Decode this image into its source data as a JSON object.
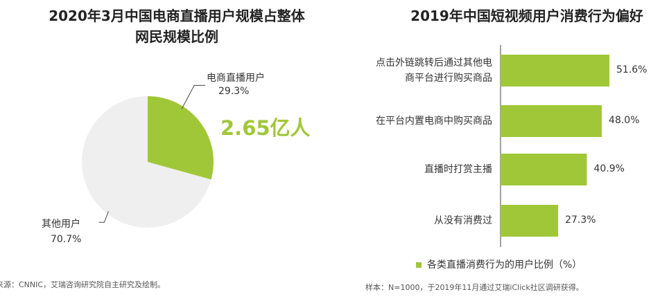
{
  "colors": {
    "accent": "#a0c738",
    "pie_other": "#efefef",
    "axis": "#444444"
  },
  "left_chart": {
    "title_line1": "2020年3月中国电商直播用户规模占整体",
    "title_line2": "网民规模比例",
    "callout": "2.65亿人",
    "source": "来源：CNNIC，艾瑞咨询研究院自主研究及绘制。"
  },
  "right_chart": {
    "title": "2019年中国短视频用户消费行为偏好",
    "source": "样本：N=1000，于2019年11月通过艾瑞iClick社区调研获得。"
  },
  "chart_data": [
    {
      "type": "pie",
      "title": "2020年3月中国电商直播用户规模占整体网民规模比例",
      "labels": [
        "电商直播用户",
        "其他用户"
      ],
      "value_labels": [
        "29.3%",
        "70.7%"
      ],
      "values": [
        29.3,
        70.7
      ],
      "colors": [
        "#a0c738",
        "#efefef"
      ]
    },
    {
      "type": "bar",
      "orientation": "horizontal",
      "title": "2019年中国短视频用户消费行为偏好",
      "categories": [
        [
          "点击外链跳转后通过其他电",
          "商平台进行购买商品"
        ],
        [
          "在平台内置电商中购买商品"
        ],
        [
          "直播时打赏主播"
        ],
        [
          "从没有消费过"
        ]
      ],
      "values": [
        51.6,
        48.0,
        40.9,
        27.3
      ],
      "value_labels": [
        "51.6%",
        "48.0%",
        "40.9%",
        "27.3%"
      ],
      "series": [
        {
          "name": "各类直播消费行为的用户比例（%）",
          "values": [
            51.6,
            48.0,
            40.9,
            27.3
          ]
        }
      ],
      "legend_position": "bottom"
    }
  ]
}
